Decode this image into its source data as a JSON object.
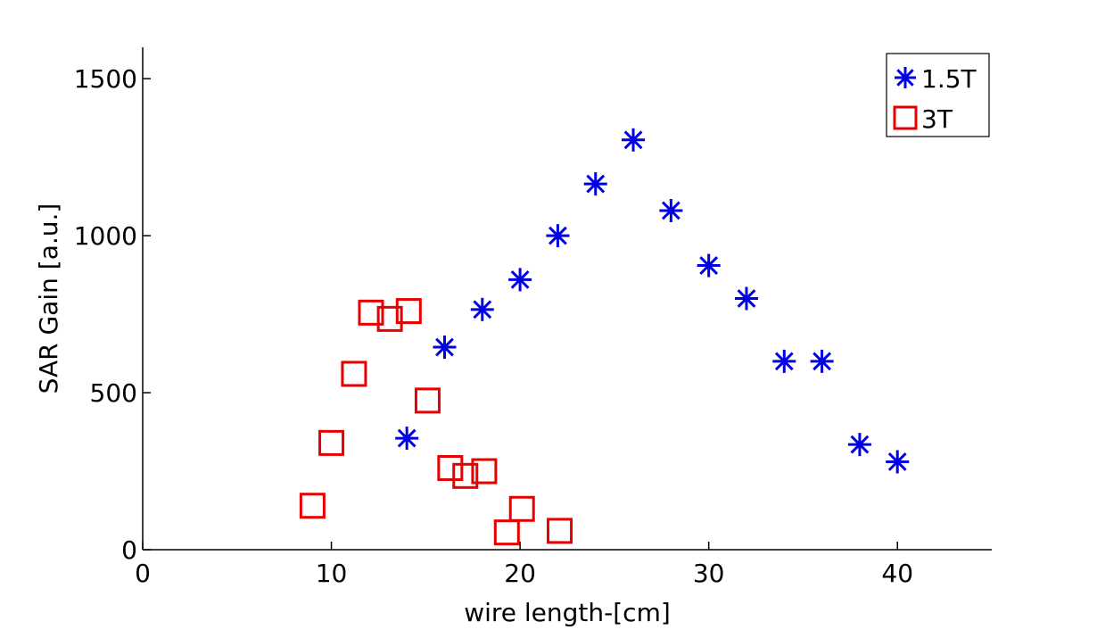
{
  "chart_data": {
    "type": "scatter",
    "title": "",
    "xlabel": "wire length-[cm]",
    "ylabel": "SAR Gain [a.u.]",
    "xlim": [
      0,
      45
    ],
    "ylim": [
      0,
      1600
    ],
    "xticks": [
      0,
      10,
      20,
      30,
      40
    ],
    "yticks": [
      0,
      500,
      1000,
      1500
    ],
    "xtick_labels": [
      "0",
      "10",
      "20",
      "30",
      "40"
    ],
    "ytick_labels": [
      "0",
      "500",
      "1000",
      "1500"
    ],
    "grid": false,
    "legend_position": "top-right",
    "series": [
      {
        "name": "1.5T",
        "marker": "asterisk",
        "color": "#0000e6",
        "points": [
          {
            "x": 14,
            "y": 355
          },
          {
            "x": 16,
            "y": 645
          },
          {
            "x": 18,
            "y": 765
          },
          {
            "x": 20,
            "y": 860
          },
          {
            "x": 22,
            "y": 1000
          },
          {
            "x": 24,
            "y": 1165
          },
          {
            "x": 26,
            "y": 1305
          },
          {
            "x": 28,
            "y": 1080
          },
          {
            "x": 30,
            "y": 905
          },
          {
            "x": 32,
            "y": 800
          },
          {
            "x": 34,
            "y": 600
          },
          {
            "x": 36,
            "y": 600
          },
          {
            "x": 38,
            "y": 335
          },
          {
            "x": 40,
            "y": 280
          }
        ]
      },
      {
        "name": "3T",
        "marker": "square",
        "color": "#e60000",
        "points": [
          {
            "x": 9,
            "y": 140
          },
          {
            "x": 10,
            "y": 340
          },
          {
            "x": 11.2,
            "y": 560
          },
          {
            "x": 12.1,
            "y": 755
          },
          {
            "x": 13.1,
            "y": 735
          },
          {
            "x": 14.1,
            "y": 760
          },
          {
            "x": 15.1,
            "y": 475
          },
          {
            "x": 16.3,
            "y": 260
          },
          {
            "x": 17.1,
            "y": 235
          },
          {
            "x": 18.1,
            "y": 250
          },
          {
            "x": 19.3,
            "y": 55
          },
          {
            "x": 20.1,
            "y": 130
          },
          {
            "x": 22.1,
            "y": 60
          }
        ]
      }
    ]
  }
}
